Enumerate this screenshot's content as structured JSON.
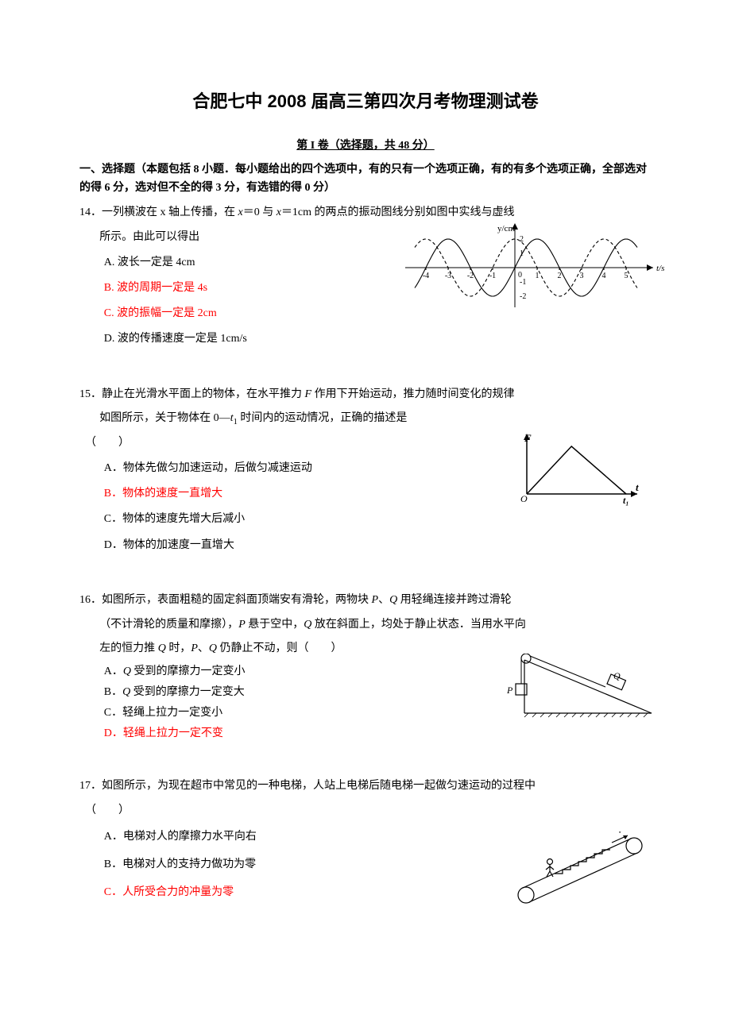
{
  "title": "合肥七中 2008 届高三第四次月考物理测试卷",
  "section_header": "第 I 卷（选择题，共 48 分）",
  "instructions": "一、选择题（本题包括 8 小题．每小题给出的四个选项中，有的只有一个选项正确，有的有多个选项正确，全部选对的得 6 分，选对但不全的得 3 分，有选错的得 0 分）",
  "wave_chart": {
    "type": "line",
    "xlim": [
      -4.5,
      5.5
    ],
    "ylim": [
      -2.4,
      2.4
    ],
    "xticks": [
      -4,
      -3,
      -2,
      -1,
      0,
      1,
      2,
      3,
      4,
      5
    ],
    "yticks": [
      -2,
      -1,
      1,
      2
    ],
    "x_axis_label": "t/s",
    "y_axis_label": "y/cm",
    "solid": {
      "amplitude": 2,
      "period": 4,
      "phase": 0,
      "color": "#000000"
    },
    "dashed": {
      "amplitude": 2,
      "period": 4,
      "phase": -1,
      "color": "#000000",
      "dash": "4,3"
    },
    "background": "#ffffff"
  },
  "force_chart": {
    "type": "line",
    "x_axis_label": "t",
    "y_axis_label": "F",
    "t1_label": "t₁",
    "points": [
      [
        0,
        0
      ],
      [
        0.45,
        1
      ],
      [
        1,
        0
      ]
    ],
    "color": "#000000",
    "background": "#ffffff"
  },
  "incline_diagram": {
    "P_label": "P",
    "Q_label": "Q",
    "color": "#000000"
  },
  "escalator_diagram": {
    "color": "#000000"
  },
  "questions": [
    {
      "number": "14．",
      "stem_pre": "一列横波在 x 轴上传播，在 ",
      "x0": "x",
      "stem_mid1": "＝0 与 ",
      "x1": "x",
      "stem_mid2": "＝1cm 的两点的振动图线分别如图中实线与虚线",
      "stem_line2": "所示。由此可以得出",
      "opts": {
        "A": "A. 波长一定是 4cm",
        "B": "B. 波的周期一定是 4s",
        "C": "C. 波的振幅一定是 2cm",
        "D": "D. 波的传播速度一定是 1cm/s"
      },
      "answers": [
        "B",
        "C"
      ]
    },
    {
      "number": "15．",
      "stem_pre": "静止在光滑水平面上的物体，在水平推力 ",
      "F": "F",
      "stem_mid1": " 作用下开始运动，推力随时间变化的规律",
      "stem_line2_pre": "如图所示，关于物体在 0—",
      "t1": "t",
      "stem_line2_post": " 时间内的运动情况，正确的描述是",
      "paren": "（　　）",
      "opts": {
        "A": "A．物体先做匀加速运动，后做匀减速运动",
        "B": "B．物体的速度一直增大",
        "C": "C．物体的速度先增大后减小",
        "D": "D．物体的加速度一直增大"
      },
      "answers": [
        "B"
      ]
    },
    {
      "number": "16．",
      "stem_1_pre": "如图所示，表面粗糙的固定斜面顶端安有滑轮，两物块 ",
      "P": "P",
      "sep1": "、",
      "Q": "Q",
      "stem_1_post": " 用轻绳连接并跨过滑轮",
      "stem_2_pre": "（不计滑轮的质量和摩擦），",
      "P2": "P",
      "stem_2_mid": " 悬于空中，",
      "Q2": "Q",
      "stem_2_post": " 放在斜面上，均处于静止状态．当用水平向",
      "stem_3_pre": "左的恒力推 ",
      "Q3": "Q",
      "stem_3_mid": " 时，",
      "P3": "P",
      "sep3": "、",
      "Q4": "Q",
      "stem_3_post": " 仍静止不动，则（　　）",
      "opts": {
        "A_pre": "A．",
        "A_Q": "Q",
        "A_post": " 受到的摩擦力一定变小",
        "B_pre": "B．",
        "B_Q": "Q",
        "B_post": " 受到的摩擦力一定变大",
        "C": "C．轻绳上拉力一定变小",
        "D": "D．轻绳上拉力一定不变"
      },
      "answers": [
        "D"
      ]
    },
    {
      "number": "17．",
      "stem_1": "如图所示，为现在超市中常见的一种电梯，人站上电梯后随电梯一起做匀速运动的过程中",
      "paren": "（　　）",
      "opts": {
        "A": "A．电梯对人的摩擦力水平向右",
        "B": "B．电梯对人的支持力做功为零",
        "C": "C．人所受合力的冲量为零"
      },
      "answers": [
        "C"
      ]
    }
  ]
}
